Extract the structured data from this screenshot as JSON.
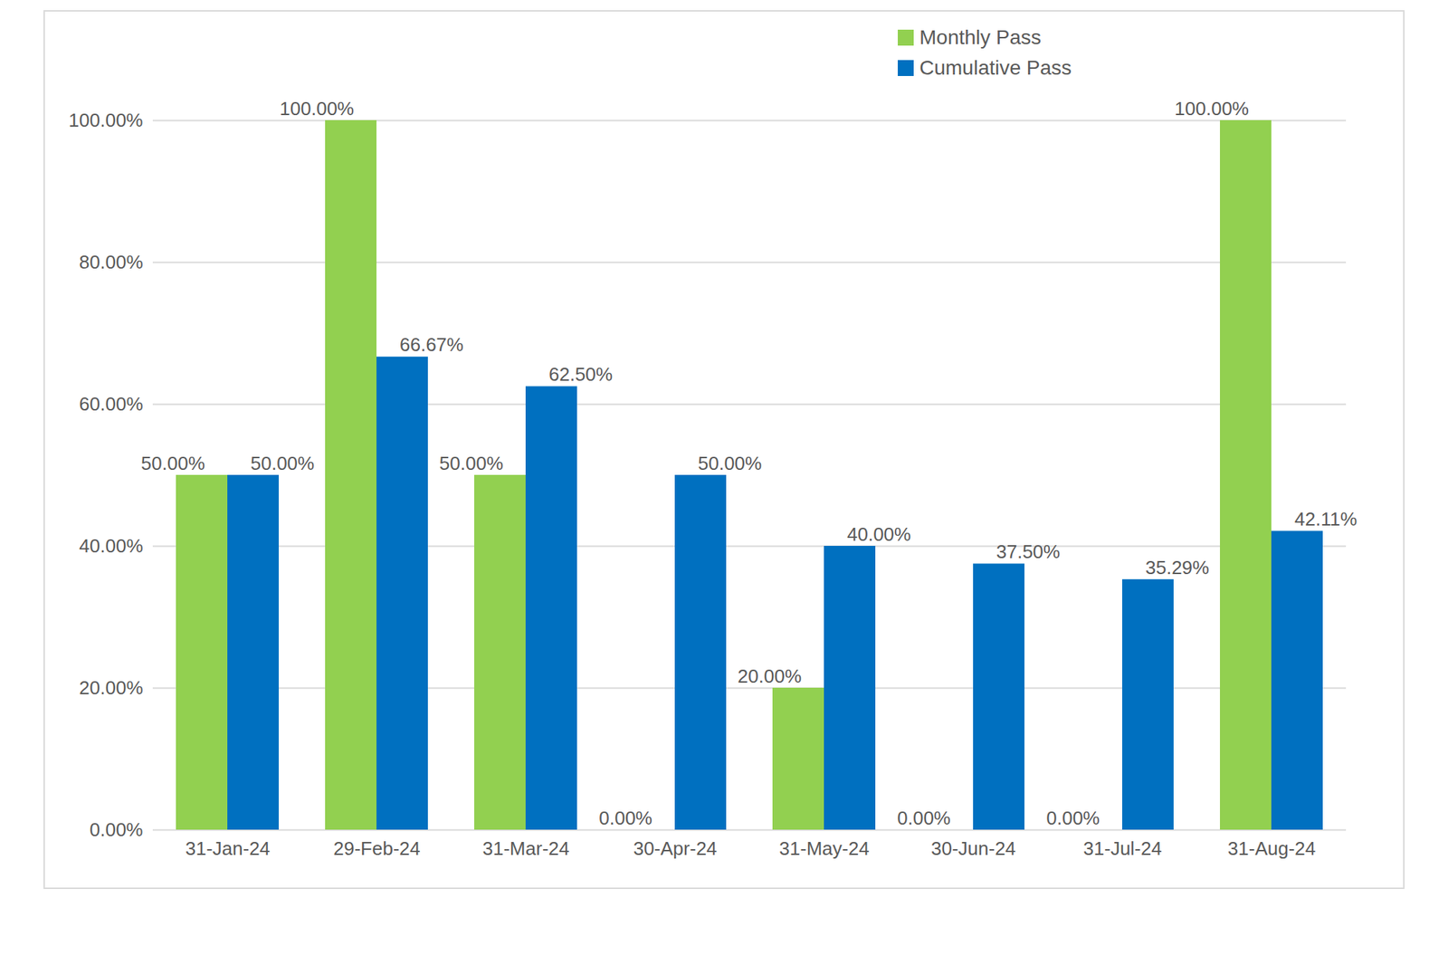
{
  "chart_data": {
    "type": "bar",
    "categories": [
      "31-Jan-24",
      "29-Feb-24",
      "31-Mar-24",
      "30-Apr-24",
      "31-May-24",
      "30-Jun-24",
      "31-Jul-24",
      "31-Aug-24"
    ],
    "series": [
      {
        "name": "Monthly Pass",
        "color": "#92D050",
        "values": [
          50,
          100,
          50,
          0,
          20,
          0,
          0,
          100
        ],
        "value_labels": [
          "50.00%",
          "100.00%",
          "50.00%",
          "0.00%",
          "20.00%",
          "0.00%",
          "0.00%",
          "100.00%"
        ]
      },
      {
        "name": "Cumulative Pass",
        "color": "#0070C0",
        "values": [
          50,
          66.67,
          62.5,
          50,
          40,
          37.5,
          35.29,
          42.11
        ],
        "value_labels": [
          "50.00%",
          "66.67%",
          "62.50%",
          "50.00%",
          "40.00%",
          "37.50%",
          "35.29%",
          "42.11%"
        ]
      }
    ],
    "ylim": [
      0,
      100
    ],
    "yticks": [
      {
        "value": 0,
        "label": "0.00%"
      },
      {
        "value": 20,
        "label": "20.00%"
      },
      {
        "value": 40,
        "label": "40.00%"
      },
      {
        "value": 60,
        "label": "60.00%"
      },
      {
        "value": 80,
        "label": "80.00%"
      },
      {
        "value": 100,
        "label": "100.00%"
      }
    ],
    "grid": true,
    "legend": "upper right",
    "data_labels": true
  }
}
